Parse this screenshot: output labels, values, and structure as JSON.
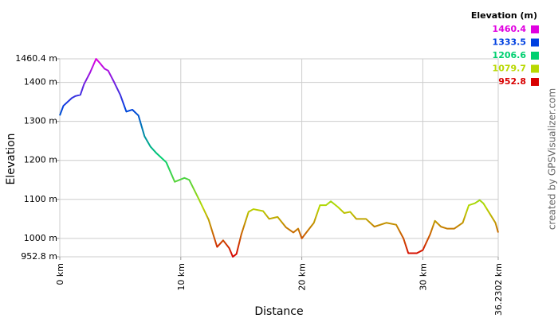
{
  "chart_data": {
    "type": "line",
    "ylabel": "Elevation",
    "xlabel": "Distance",
    "credit": "created by GPSVisualizer.com",
    "x": [
      0,
      0.3,
      1,
      1.3,
      1.7,
      2,
      2.5,
      3.0,
      3.3,
      3.7,
      4.0,
      4.5,
      5,
      5.5,
      6,
      6.5,
      7,
      7.5,
      8,
      8.8,
      9.5,
      10.3,
      10.7,
      11.5,
      12.3,
      13,
      13.5,
      14,
      14.3,
      14.6,
      15,
      15.6,
      16,
      16.8,
      17.3,
      18,
      18.7,
      19.3,
      19.7,
      20,
      20.5,
      21,
      21.5,
      22,
      22.4,
      23,
      23.5,
      24,
      24.5,
      25.3,
      26,
      27,
      27.8,
      28.4,
      28.8,
      29.5,
      30,
      30.6,
      31,
      31.5,
      32,
      32.6,
      33.3,
      33.8,
      34.3,
      34.7,
      35,
      35.5,
      36,
      36.2302
    ],
    "values": [
      1315,
      1340,
      1360,
      1365,
      1368,
      1395,
      1425,
      1460.4,
      1450,
      1435,
      1430,
      1400,
      1368,
      1325,
      1330,
      1315,
      1262,
      1235,
      1218,
      1195,
      1145,
      1155,
      1150,
      1100,
      1048,
      978,
      995,
      975,
      952.8,
      960,
      1010,
      1068,
      1075,
      1070,
      1050,
      1055,
      1028,
      1015,
      1025,
      1000,
      1020,
      1040,
      1085,
      1085,
      1095,
      1080,
      1065,
      1068,
      1050,
      1050,
      1030,
      1040,
      1035,
      1000,
      962,
      962,
      970,
      1010,
      1045,
      1030,
      1025,
      1025,
      1040,
      1085,
      1090,
      1098,
      1090,
      1065,
      1040,
      1015
    ],
    "xlim": [
      0,
      36.2302
    ],
    "xticks": [
      {
        "value": 0,
        "label": "0 km"
      },
      {
        "value": 10,
        "label": "10 km"
      },
      {
        "value": 20,
        "label": "20 km"
      },
      {
        "value": 30,
        "label": "30 km"
      },
      {
        "value": 36.2302,
        "label": "36.2302 km"
      }
    ],
    "ylim": [
      952.8,
      1460.4
    ],
    "yticks": [
      {
        "value": 952.8,
        "label": "952.8 m"
      },
      {
        "value": 1000,
        "label": "1000 m"
      },
      {
        "value": 1100,
        "label": "1100 m"
      },
      {
        "value": 1200,
        "label": "1200 m"
      },
      {
        "value": 1300,
        "label": "1300 m"
      },
      {
        "value": 1400,
        "label": "1400 m"
      },
      {
        "value": 1460.4,
        "label": "1460.4 m"
      }
    ],
    "grid": true,
    "legend": {
      "title": "Elevation (m)",
      "entries": [
        {
          "value": 1460.4,
          "color": "#e000e0"
        },
        {
          "value": 1333.5,
          "color": "#0040e0"
        },
        {
          "value": 1206.6,
          "color": "#00d070"
        },
        {
          "value": 1079.7,
          "color": "#b8d800"
        },
        {
          "value": 952.8,
          "color": "#d80000"
        }
      ]
    }
  }
}
